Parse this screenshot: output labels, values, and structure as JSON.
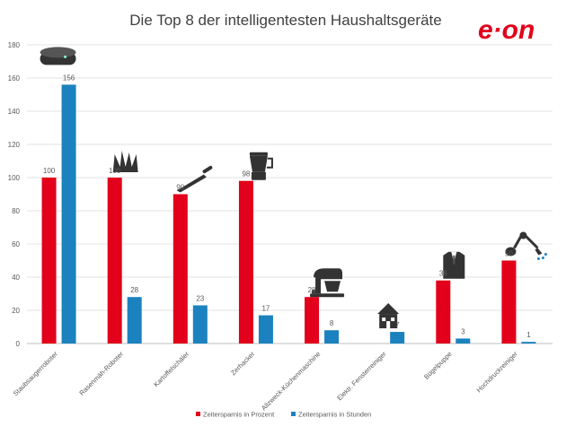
{
  "brand": {
    "logo_text": "e·on",
    "logo_color": "#e2001a"
  },
  "chart_data": {
    "type": "bar",
    "title": "Die Top 8 der intelligentesten Haushaltsgeräte",
    "xlabel": "",
    "ylabel": "",
    "ylim": [
      0,
      180
    ],
    "yticks": [
      0,
      20,
      40,
      60,
      80,
      100,
      120,
      140,
      160,
      180
    ],
    "grid": true,
    "legend_position": "bottom",
    "categories": [
      "Staubsaugerroboter",
      "Rasenmäh-Roboter",
      "Kartoffelschäler",
      "Zerhacker",
      "Allzweck-Küchenmaschine",
      "Elektr. Fensterreiniger",
      "Bügelpuppe",
      "Hochdruckreiniger"
    ],
    "category_icons": [
      "robot-vacuum-icon",
      "grass-icon",
      "peeler-icon",
      "blender-icon",
      "stand-mixer-icon",
      "house-icon",
      "suit-icon",
      "pressure-washer-icon"
    ],
    "series": [
      {
        "name": "Zeitersparnis in Prozent",
        "color": "#e2001a",
        "values": [
          100,
          100,
          90,
          98,
          28,
          null,
          38,
          50
        ]
      },
      {
        "name": "Zeitersparnis in Stunden",
        "color": "#1b82bf",
        "values": [
          156,
          28,
          23,
          17,
          8,
          7,
          3,
          1
        ]
      }
    ]
  }
}
